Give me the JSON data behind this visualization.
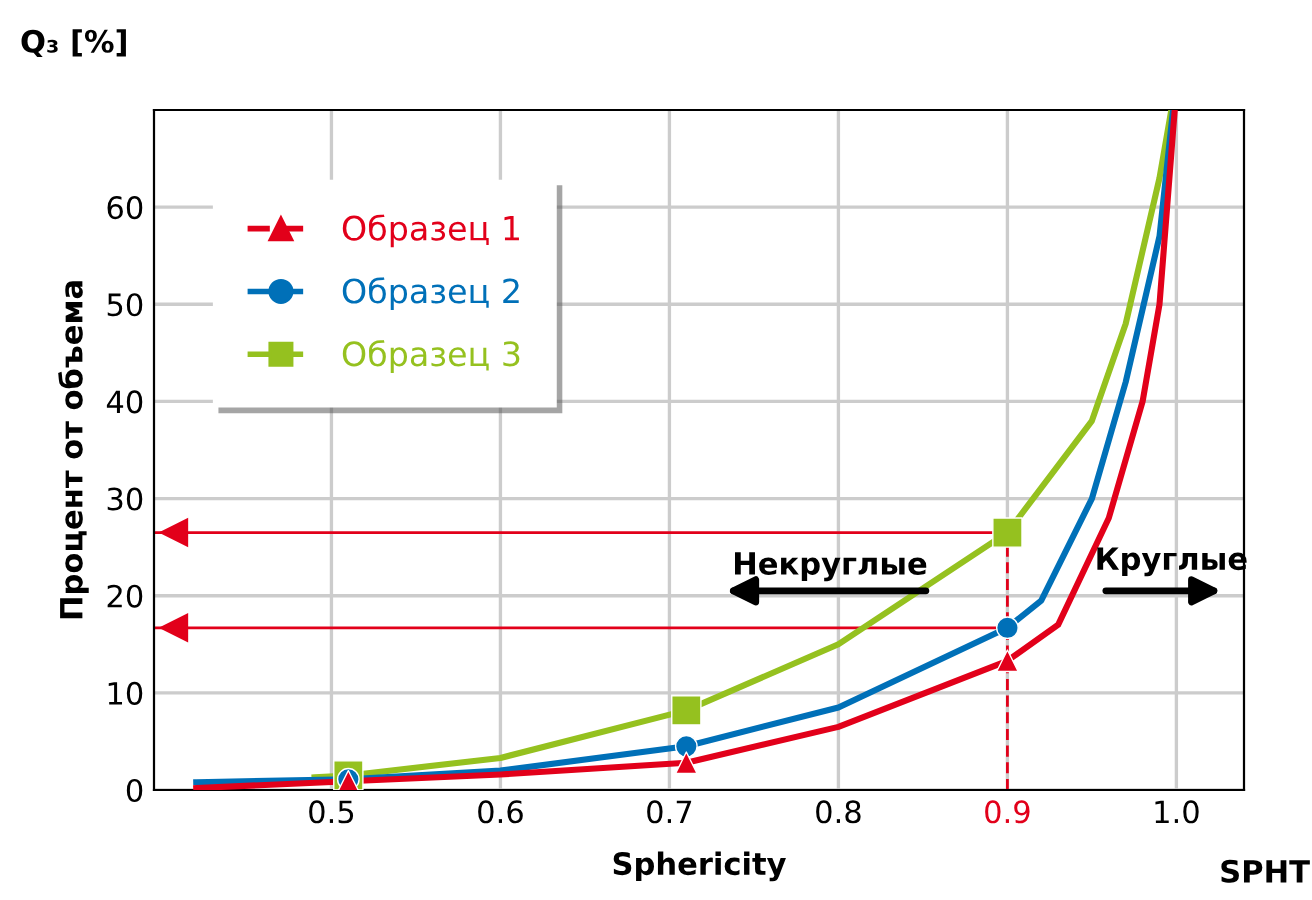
{
  "chart_data": {
    "type": "line",
    "title": "Q₃ [%]",
    "xlabel": "Sphericity",
    "ylabel": "Процент от объема",
    "annotations": [
      "Некруглые",
      "Круглые",
      "SPHT"
    ],
    "xlim": [
      0.395,
      1.04
    ],
    "ylim": [
      0,
      70
    ],
    "xticks": [
      0.5,
      0.6,
      0.7,
      0.8,
      0.9,
      {
        "value": 1.0,
        "label": "1.0"
      }
    ],
    "yticks": [
      0,
      10,
      20,
      30,
      40,
      50,
      60
    ],
    "grid": true,
    "legend": "top left",
    "series": [
      {
        "type": "line",
        "color": "#e2001a",
        "x": [
          0.42,
          0.51,
          0.6,
          0.71,
          0.8,
          0.9,
          0.93,
          0.96,
          0.98,
          0.99,
          0.999
        ],
        "values": [
          0.2,
          0.9,
          1.6,
          2.8,
          6.5,
          13.3,
          17,
          28,
          40,
          50,
          70
        ]
      },
      {
        "type": "line",
        "color": "#0070b8",
        "x": [
          0.42,
          0.51,
          0.6,
          0.71,
          0.8,
          0.9,
          0.92,
          0.95,
          0.97,
          0.99,
          0.998
        ],
        "values": [
          0.8,
          1.1,
          2,
          4.5,
          8.5,
          16.7,
          19.5,
          30,
          42,
          57,
          70
        ]
      },
      {
        "type": "line",
        "color": "#95c11f",
        "x": [
          0.49,
          0.51,
          0.6,
          0.71,
          0.8,
          0.9,
          0.95,
          0.97,
          0.99,
          0.997
        ],
        "values": [
          1.3,
          1.5,
          3.3,
          8.2,
          15,
          26.5,
          38,
          48,
          63,
          70
        ]
      },
      {
        "type": "scatter",
        "name": "Образец 1",
        "color": "#e2001a",
        "marker": "triangle",
        "line_style": "dashed",
        "x": [
          0.51,
          0.71,
          0.9
        ],
        "values": [
          0.9,
          2.8,
          13.3
        ]
      },
      {
        "type": "scatter",
        "name": "Образец 2",
        "color": "#0070b8",
        "marker": "circle",
        "line_style": "dashed",
        "x": [
          0.51,
          0.71,
          0.9
        ],
        "values": [
          1.1,
          4.5,
          16.7
        ]
      },
      {
        "type": "scatter",
        "name": "Образец 3",
        "color": "#95c11f",
        "marker": "square",
        "line_style": "dashed",
        "x": [
          0.51,
          0.71,
          0.9
        ],
        "values": [
          1.5,
          8.2,
          26.5
        ]
      }
    ],
    "ref_lines": [
      {
        "axis": "x",
        "value": 0.9,
        "color": "#e2001a",
        "line_style": "dashed"
      },
      {
        "axis": "y",
        "value": 26.5,
        "color": "#e2001a",
        "line_style": "solid"
      },
      {
        "axis": "y",
        "value": 16.7,
        "color": "#e2001a",
        "line_style": "solid"
      }
    ]
  }
}
